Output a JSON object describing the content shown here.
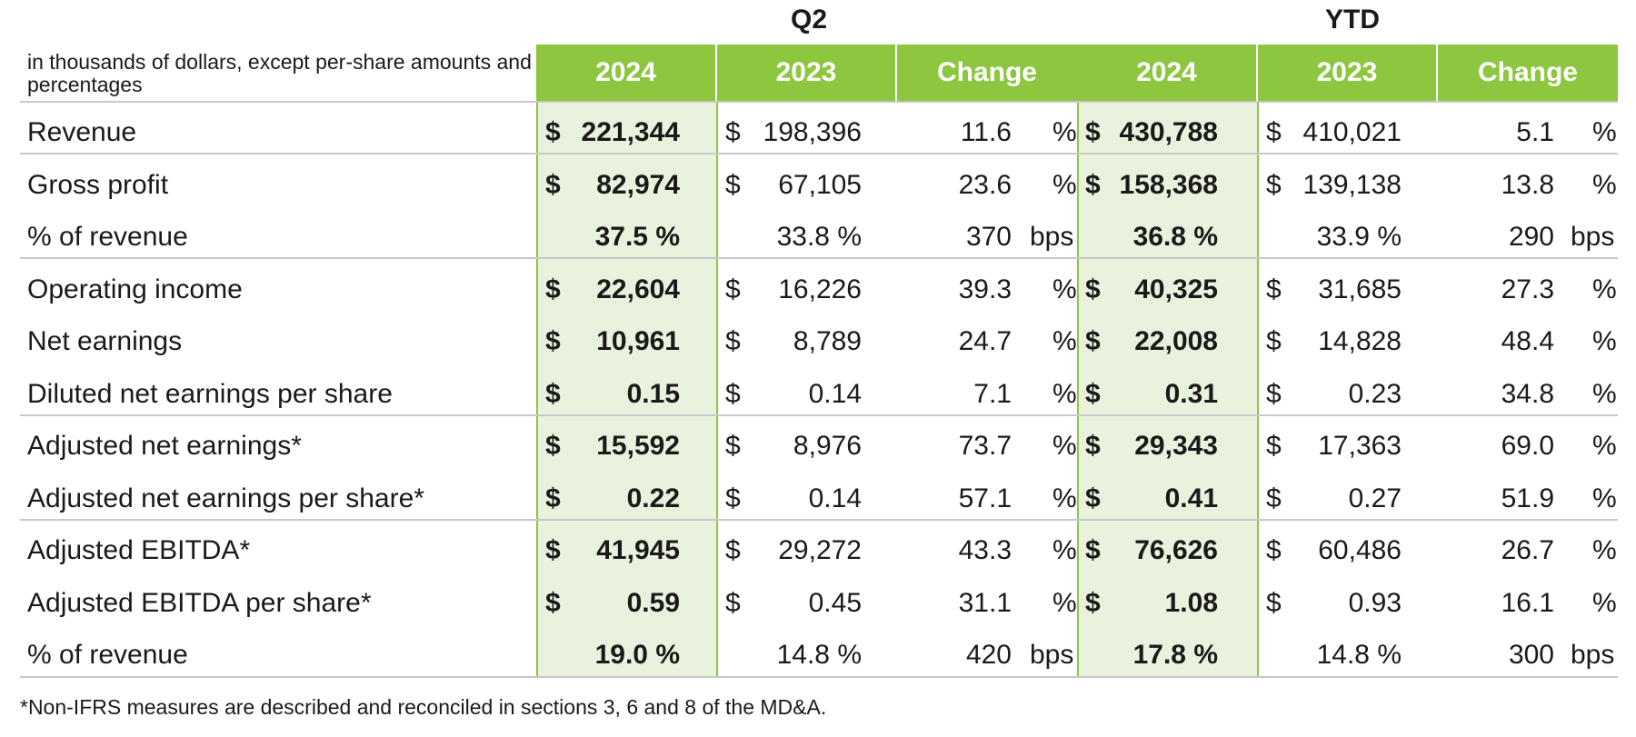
{
  "header": {
    "units_note": "in thousands of dollars, except per-share amounts and percentages",
    "groups": [
      "Q2",
      "YTD"
    ],
    "columns": [
      "2024",
      "2023",
      "Change",
      "2024",
      "2023",
      "Change"
    ]
  },
  "rows": [
    {
      "label": "Revenue",
      "q2_2024": "221,344",
      "q2_2023": "198,396",
      "q2_change": "11.6",
      "q2_change_unit": "%",
      "ytd_2024": "430,788",
      "ytd_2023": "410,021",
      "ytd_change": "5.1",
      "ytd_change_unit": "%"
    },
    {
      "label": "Gross profit",
      "q2_2024": "82,974",
      "q2_2023": "67,105",
      "q2_change": "23.6",
      "q2_change_unit": "%",
      "ytd_2024": "158,368",
      "ytd_2023": "139,138",
      "ytd_change": "13.8",
      "ytd_change_unit": "%"
    },
    {
      "label": "% of revenue",
      "q2_2024": "37.5 %",
      "q2_2023": "33.8 %",
      "q2_change": "370",
      "q2_change_unit": "bps",
      "ytd_2024": "36.8 %",
      "ytd_2023": "33.9 %",
      "ytd_change": "290",
      "ytd_change_unit": "bps"
    },
    {
      "label": "Operating income",
      "q2_2024": "22,604",
      "q2_2023": "16,226",
      "q2_change": "39.3",
      "q2_change_unit": "%",
      "ytd_2024": "40,325",
      "ytd_2023": "31,685",
      "ytd_change": "27.3",
      "ytd_change_unit": "%"
    },
    {
      "label": "Net earnings",
      "q2_2024": "10,961",
      "q2_2023": "8,789",
      "q2_change": "24.7",
      "q2_change_unit": "%",
      "ytd_2024": "22,008",
      "ytd_2023": "14,828",
      "ytd_change": "48.4",
      "ytd_change_unit": "%"
    },
    {
      "label": "Diluted net earnings per share",
      "q2_2024": "0.15",
      "q2_2023": "0.14",
      "q2_change": "7.1",
      "q2_change_unit": "%",
      "ytd_2024": "0.31",
      "ytd_2023": "0.23",
      "ytd_change": "34.8",
      "ytd_change_unit": "%"
    },
    {
      "label": "Adjusted net earnings*",
      "q2_2024": "15,592",
      "q2_2023": "8,976",
      "q2_change": "73.7",
      "q2_change_unit": "%",
      "ytd_2024": "29,343",
      "ytd_2023": "17,363",
      "ytd_change": "69.0",
      "ytd_change_unit": "%"
    },
    {
      "label": "Adjusted net earnings per share*",
      "q2_2024": "0.22",
      "q2_2023": "0.14",
      "q2_change": "57.1",
      "q2_change_unit": "%",
      "ytd_2024": "0.41",
      "ytd_2023": "0.27",
      "ytd_change": "51.9",
      "ytd_change_unit": "%"
    },
    {
      "label": "Adjusted EBITDA*",
      "q2_2024": "41,945",
      "q2_2023": "29,272",
      "q2_change": "43.3",
      "q2_change_unit": "%",
      "ytd_2024": "76,626",
      "ytd_2023": "60,486",
      "ytd_change": "26.7",
      "ytd_change_unit": "%"
    },
    {
      "label": "Adjusted EBITDA per share*",
      "q2_2024": "0.59",
      "q2_2023": "0.45",
      "q2_change": "31.1",
      "q2_change_unit": "%",
      "ytd_2024": "1.08",
      "ytd_2023": "0.93",
      "ytd_change": "16.1",
      "ytd_change_unit": "%"
    },
    {
      "label": "% of revenue",
      "q2_2024": "19.0 %",
      "q2_2023": "14.8 %",
      "q2_change": "420",
      "q2_change_unit": "bps",
      "ytd_2024": "17.8 %",
      "ytd_2023": "14.8 %",
      "ytd_change": "300",
      "ytd_change_unit": "bps"
    }
  ],
  "currency_symbol": "$",
  "currency_rows": [
    0,
    1,
    3,
    4,
    5,
    6,
    7,
    8,
    9
  ],
  "footnote": "*Non-IFRS measures are described and reconciled in sections 3, 6 and 8 of the MD&A."
}
